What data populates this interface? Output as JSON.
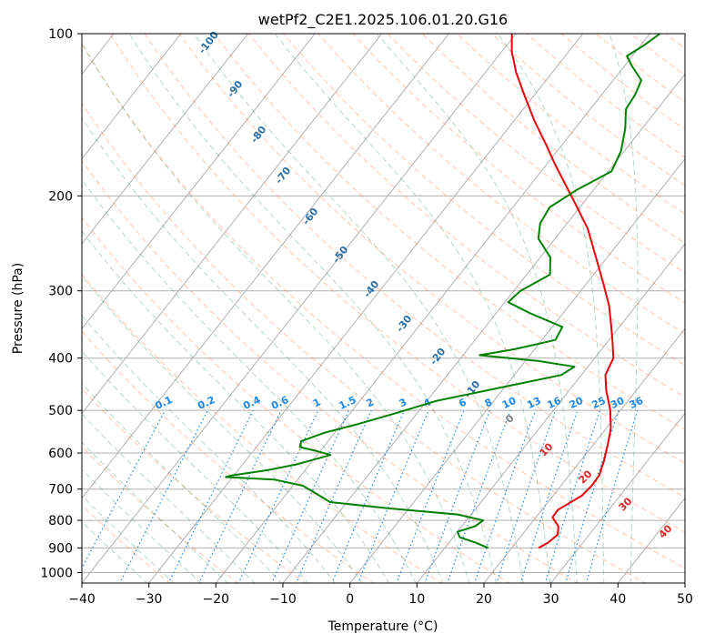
{
  "chart_data": {
    "type": "line",
    "title": "wetPf2_C2E1.2025.106.01.20.G16",
    "xlabel": "Temperature (°C)",
    "ylabel": "Pressure (hPa)",
    "xlim": [
      -40,
      50
    ],
    "ylim": [
      1050,
      100
    ],
    "y_scale": "log",
    "grid": true,
    "x_ticks": [
      -40,
      -30,
      -20,
      -10,
      0,
      10,
      20,
      30,
      40,
      50
    ],
    "y_ticks": [
      100,
      200,
      300,
      400,
      500,
      600,
      700,
      800,
      900,
      1000
    ],
    "colors": {
      "temperature": "#e8000b",
      "dewpoint": "#008000",
      "mixing_ratio": "#1e88e5",
      "dry_adiabat": "#ff7f50",
      "moist_adiabat": "#2e8b57",
      "isotherm": "#808080",
      "grid": "#b0b0b0"
    },
    "series": [
      {
        "key": "temperature",
        "values": [
          {
            "p": 900,
            "t": 24.0
          },
          {
            "p": 880,
            "t": 24.8
          },
          {
            "p": 850,
            "t": 25.3
          },
          {
            "p": 820,
            "t": 24.4
          },
          {
            "p": 790,
            "t": 22.5
          },
          {
            "p": 765,
            "t": 22.4
          },
          {
            "p": 745,
            "t": 23.2
          },
          {
            "p": 720,
            "t": 24.3
          },
          {
            "p": 690,
            "t": 24.6
          },
          {
            "p": 660,
            "t": 24.5
          },
          {
            "p": 620,
            "t": 23.5
          },
          {
            "p": 580,
            "t": 22.2
          },
          {
            "p": 540,
            "t": 20.7
          },
          {
            "p": 500,
            "t": 18.5
          },
          {
            "p": 460,
            "t": 15.6
          },
          {
            "p": 430,
            "t": 13.6
          },
          {
            "p": 400,
            "t": 12.8
          },
          {
            "p": 370,
            "t": 10.5
          },
          {
            "p": 350,
            "t": 8.8
          },
          {
            "p": 320,
            "t": 6.0
          },
          {
            "p": 290,
            "t": 2.4
          },
          {
            "p": 260,
            "t": -1.7
          },
          {
            "p": 230,
            "t": -6.3
          },
          {
            "p": 200,
            "t": -12.6
          },
          {
            "p": 175,
            "t": -18.7
          },
          {
            "p": 160,
            "t": -22.6
          },
          {
            "p": 145,
            "t": -27.0
          },
          {
            "p": 130,
            "t": -31.5
          },
          {
            "p": 118,
            "t": -35.4
          },
          {
            "p": 108,
            "t": -38.5
          },
          {
            "p": 100,
            "t": -40.6
          }
        ]
      },
      {
        "key": "dewpoint",
        "values": [
          {
            "p": 900,
            "t": 16.5
          },
          {
            "p": 880,
            "t": 14.0
          },
          {
            "p": 860,
            "t": 11.0
          },
          {
            "p": 840,
            "t": 10.0
          },
          {
            "p": 820,
            "t": 12.0
          },
          {
            "p": 800,
            "t": 12.5
          },
          {
            "p": 780,
            "t": 8.0
          },
          {
            "p": 760,
            "t": -3.0
          },
          {
            "p": 740,
            "t": -12.5
          },
          {
            "p": 710,
            "t": -16.0
          },
          {
            "p": 690,
            "t": -18.5
          },
          {
            "p": 672,
            "t": -23.5
          },
          {
            "p": 665,
            "t": -31.0
          },
          {
            "p": 660,
            "t": -30.3
          },
          {
            "p": 645,
            "t": -25.5
          },
          {
            "p": 630,
            "t": -22.0
          },
          {
            "p": 605,
            "t": -18.0
          },
          {
            "p": 595,
            "t": -20.5
          },
          {
            "p": 585,
            "t": -23.5
          },
          {
            "p": 570,
            "t": -24.0
          },
          {
            "p": 550,
            "t": -21.5
          },
          {
            "p": 530,
            "t": -17.5
          },
          {
            "p": 505,
            "t": -13.0
          },
          {
            "p": 480,
            "t": -8.5
          },
          {
            "p": 455,
            "t": -1.0
          },
          {
            "p": 430,
            "t": 7.0
          },
          {
            "p": 415,
            "t": 8.0
          },
          {
            "p": 405,
            "t": 2.0
          },
          {
            "p": 395,
            "t": -7.5
          },
          {
            "p": 385,
            "t": -3.0
          },
          {
            "p": 370,
            "t": 2.0
          },
          {
            "p": 350,
            "t": 1.5
          },
          {
            "p": 330,
            "t": -5.0
          },
          {
            "p": 315,
            "t": -9.5
          },
          {
            "p": 300,
            "t": -9.0
          },
          {
            "p": 280,
            "t": -6.5
          },
          {
            "p": 260,
            "t": -8.5
          },
          {
            "p": 240,
            "t": -12.5
          },
          {
            "p": 225,
            "t": -14.0
          },
          {
            "p": 210,
            "t": -14.5
          },
          {
            "p": 195,
            "t": -12.5
          },
          {
            "p": 180,
            "t": -9.5
          },
          {
            "p": 165,
            "t": -10.5
          },
          {
            "p": 150,
            "t": -12.5
          },
          {
            "p": 138,
            "t": -14.7
          },
          {
            "p": 130,
            "t": -15.0
          },
          {
            "p": 122,
            "t": -15.8
          },
          {
            "p": 115,
            "t": -18.8
          },
          {
            "p": 110,
            "t": -20.8
          },
          {
            "p": 105,
            "t": -19.5
          },
          {
            "p": 100,
            "t": -18.5
          }
        ]
      }
    ],
    "dry_adiabat_labels": [
      "-100",
      "-90",
      "-80",
      "-70",
      "-60",
      "-50",
      "-40",
      "-30",
      "-20",
      "-10"
    ],
    "moist_adiabat_labels": [
      "0",
      "10",
      "20",
      "30",
      "40"
    ],
    "mixing_ratio_labels": [
      "0.1",
      "0.2",
      "0.4",
      "0.6",
      "1",
      "1.5",
      "2",
      "3",
      "4",
      "6",
      "8",
      "10",
      "13",
      "16",
      "20",
      "25",
      "30",
      "36"
    ]
  }
}
